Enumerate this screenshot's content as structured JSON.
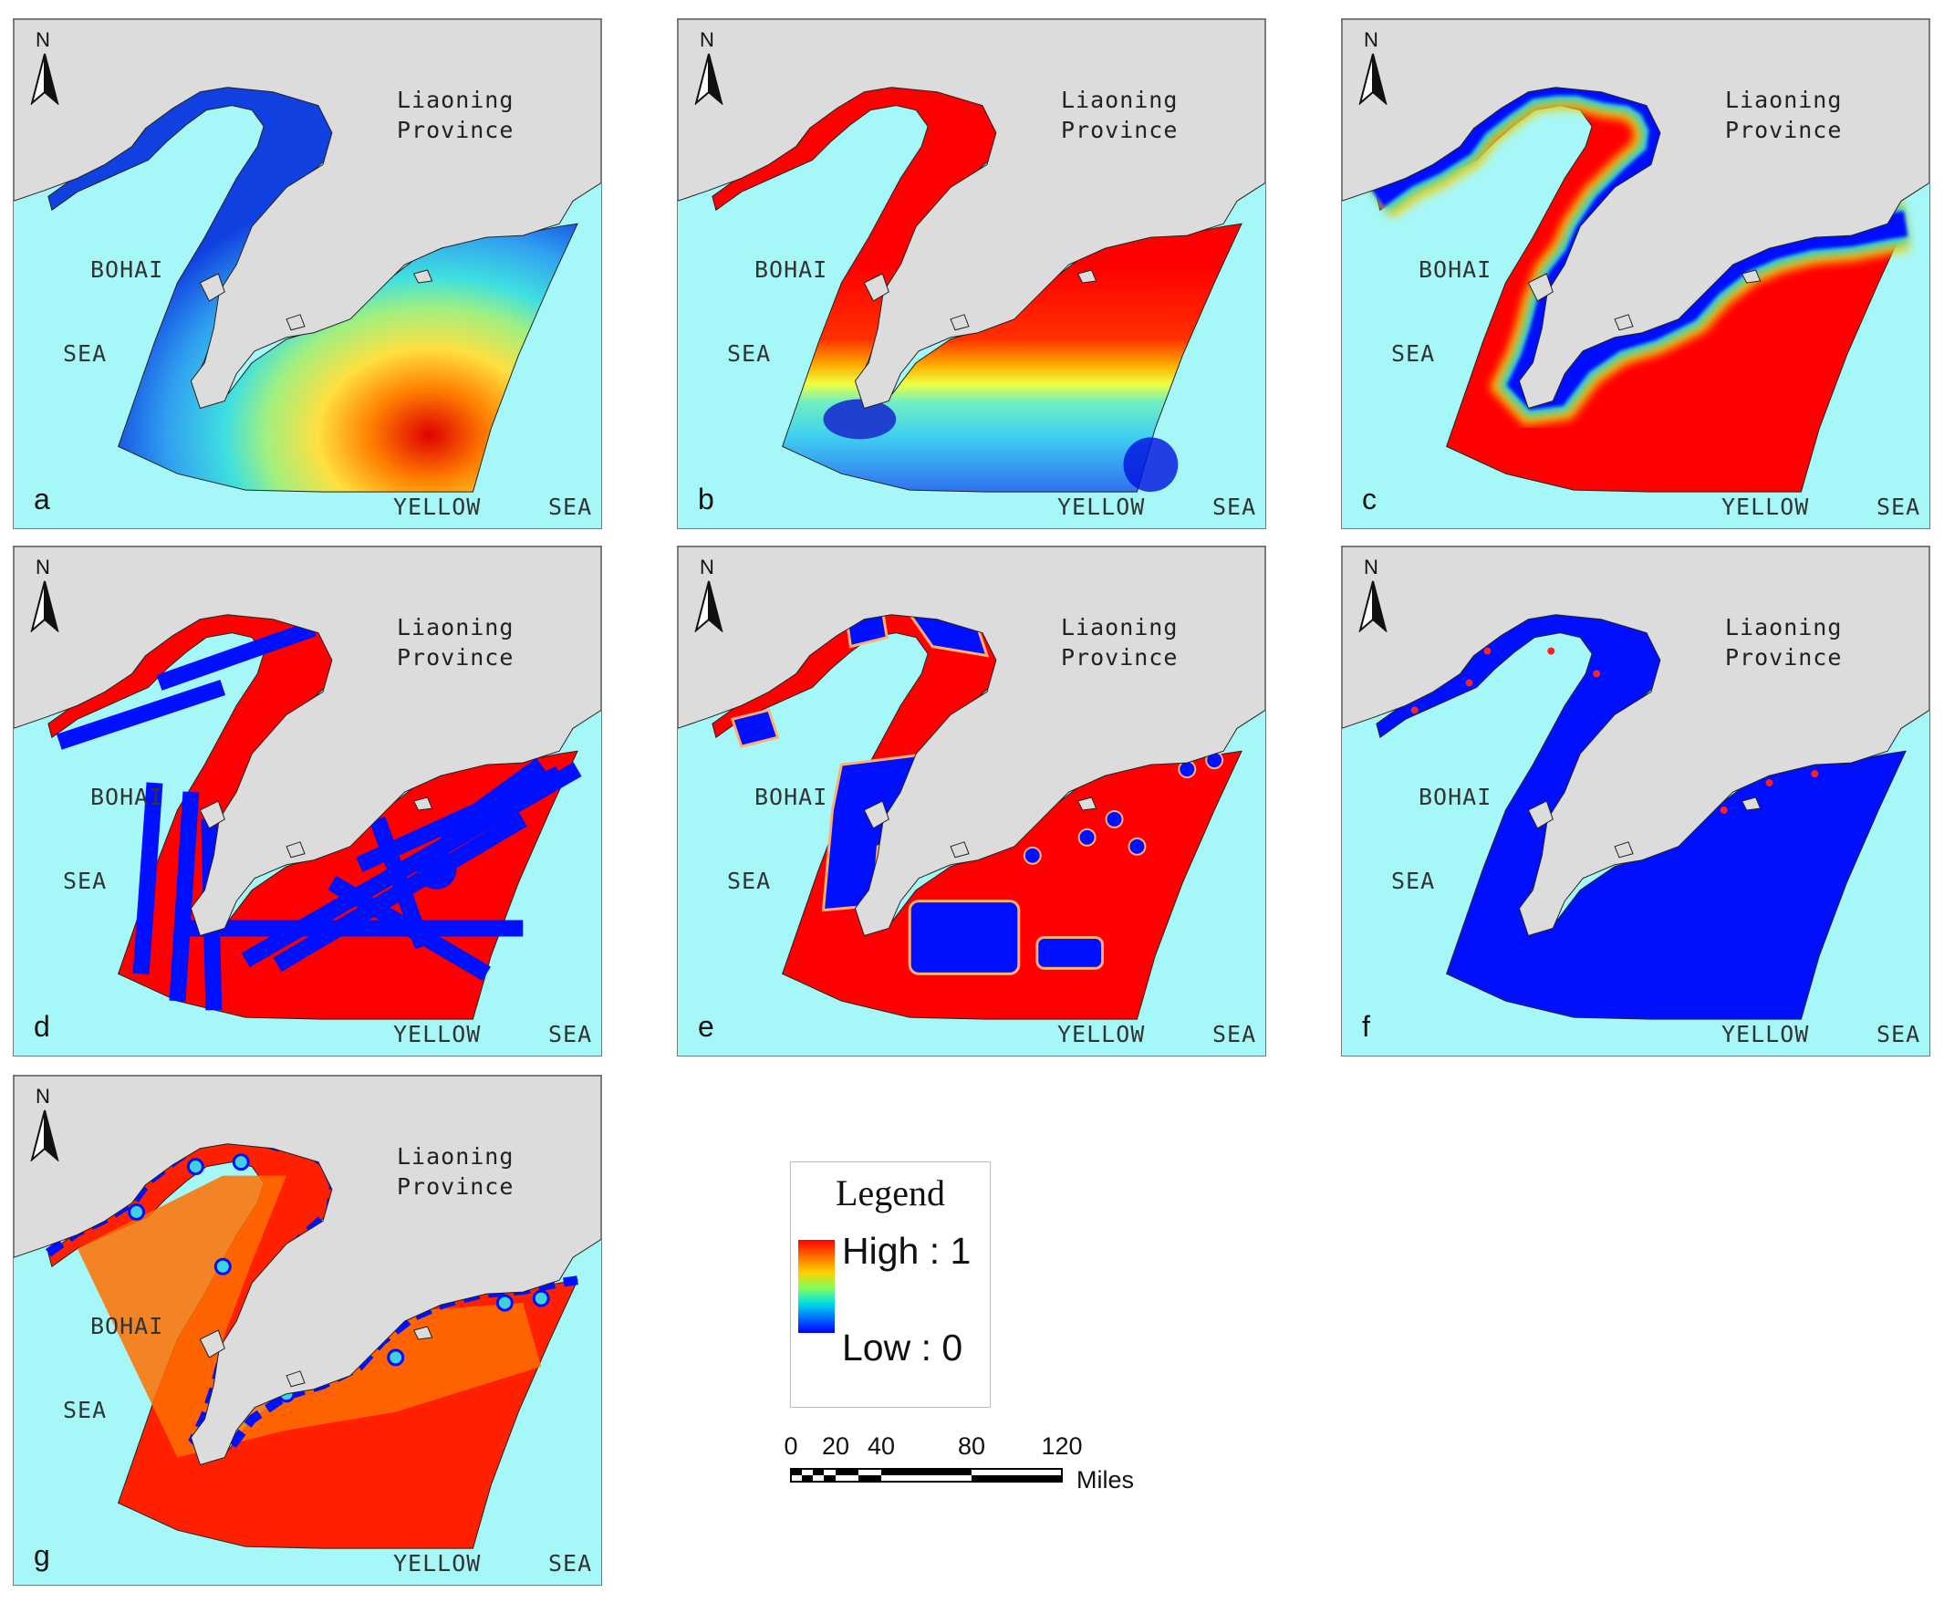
{
  "labels": {
    "north": "N",
    "province_line1": "Liaoning",
    "province_line2": "Province",
    "bohai": "BOHAI",
    "sea": "SEA",
    "yellow": "YELLOW",
    "sea2": "SEA"
  },
  "panels": [
    {
      "id": "a",
      "style": "gradient-southeast"
    },
    {
      "id": "b",
      "style": "red-north-blue-south"
    },
    {
      "id": "c",
      "style": "coastal-buffer"
    },
    {
      "id": "d",
      "style": "red-with-blue-lanes"
    },
    {
      "id": "e",
      "style": "red-with-blue-zones"
    },
    {
      "id": "f",
      "style": "mostly-blue"
    },
    {
      "id": "g",
      "style": "orange-red-mosaic"
    }
  ],
  "legend": {
    "title": "Legend",
    "high": "High : 1",
    "low": "Low : 0"
  },
  "scale": {
    "ticks": [
      "0",
      "20",
      "40",
      "80",
      "120"
    ],
    "tick_values": [
      0,
      20,
      40,
      80,
      120
    ],
    "units": "Miles"
  },
  "colors": {
    "sea": "#a6f8f8",
    "land": "#dcdcdc",
    "high": "#ff0000",
    "low": "#0000ff"
  }
}
